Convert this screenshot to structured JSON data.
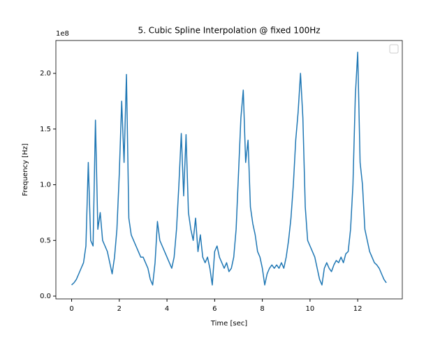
{
  "chart_data": {
    "type": "line",
    "title": "5. Cubic Spline Interpolation @ fixed 100Hz",
    "x_label": "Time [sec]",
    "y_label": "Frequency [Hz]",
    "y_offset_label": "1e8",
    "legend": "upper right",
    "x": [
      0,
      0.1,
      0.2,
      0.3,
      0.4,
      0.5,
      0.6,
      0.7,
      0.8,
      0.9,
      1,
      1.1,
      1.2,
      1.3,
      1.4,
      1.5,
      1.6,
      1.7,
      1.8,
      1.9,
      2,
      2.1,
      2.2,
      2.3,
      2.4,
      2.5,
      2.6,
      2.7,
      2.8,
      2.9,
      3,
      3.1,
      3.2,
      3.3,
      3.4,
      3.5,
      3.6,
      3.7,
      3.8,
      3.9,
      4,
      4.1,
      4.2,
      4.3,
      4.4,
      4.5,
      4.6,
      4.7,
      4.8,
      4.9,
      5,
      5.1,
      5.2,
      5.3,
      5.4,
      5.5,
      5.6,
      5.7,
      5.8,
      5.9,
      6,
      6.1,
      6.2,
      6.3,
      6.4,
      6.5,
      6.6,
      6.7,
      6.8,
      6.9,
      7,
      7.1,
      7.2,
      7.3,
      7.4,
      7.5,
      7.6,
      7.7,
      7.8,
      7.9,
      8,
      8.1,
      8.2,
      8.3,
      8.4,
      8.5,
      8.6,
      8.7,
      8.8,
      8.9,
      9,
      9.1,
      9.2,
      9.3,
      9.4,
      9.5,
      9.6,
      9.7,
      9.8,
      9.9,
      10,
      10.1,
      10.2,
      10.3,
      10.4,
      10.5,
      10.6,
      10.7,
      10.8,
      10.9,
      11,
      11.1,
      11.2,
      11.3,
      11.4,
      11.5,
      11.6,
      11.7,
      11.8,
      11.9,
      12,
      12.1,
      12.2,
      12.3,
      12.4,
      12.5,
      12.6,
      12.7,
      12.8,
      12.9,
      13,
      13.1,
      13.2
    ],
    "series": [
      {
        "color": "#1f77b4",
        "values": [
          10000000,
          12000000,
          15000000,
          20000000,
          25000000,
          30000000,
          45000000,
          120000000,
          50000000,
          45000000,
          158000000,
          60000000,
          75000000,
          50000000,
          45000000,
          40000000,
          30000000,
          20000000,
          35000000,
          60000000,
          110000000,
          175000000,
          120000000,
          199000000,
          70000000,
          55000000,
          50000000,
          45000000,
          40000000,
          35000000,
          35000000,
          30000000,
          25000000,
          15000000,
          10000000,
          30000000,
          67000000,
          50000000,
          45000000,
          40000000,
          35000000,
          30000000,
          25000000,
          35000000,
          60000000,
          100000000,
          146000000,
          90000000,
          145000000,
          75000000,
          60000000,
          50000000,
          70000000,
          40000000,
          55000000,
          35000000,
          30000000,
          35000000,
          25000000,
          10000000,
          40000000,
          45000000,
          35000000,
          30000000,
          25000000,
          30000000,
          22000000,
          25000000,
          35000000,
          60000000,
          110000000,
          160000000,
          185000000,
          120000000,
          140000000,
          80000000,
          65000000,
          55000000,
          40000000,
          35000000,
          25000000,
          10000000,
          20000000,
          25000000,
          28000000,
          25000000,
          28000000,
          25000000,
          30000000,
          25000000,
          35000000,
          50000000,
          70000000,
          100000000,
          140000000,
          165000000,
          200000000,
          160000000,
          80000000,
          50000000,
          45000000,
          40000000,
          35000000,
          25000000,
          15000000,
          10000000,
          25000000,
          30000000,
          25000000,
          22000000,
          28000000,
          32000000,
          30000000,
          35000000,
          30000000,
          38000000,
          40000000,
          60000000,
          100000000,
          180000000,
          219000000,
          120000000,
          100000000,
          60000000,
          50000000,
          40000000,
          35000000,
          30000000,
          28000000,
          25000000,
          20000000,
          15000000,
          12000000
        ]
      }
    ],
    "xlim": [
      -0.66,
      13.87
    ],
    "ylim": [
      -2500000,
      229500000
    ],
    "xticks": [
      0,
      2,
      4,
      6,
      8,
      10,
      12
    ],
    "yticks": [
      {
        "value": 0,
        "label": "0.0"
      },
      {
        "value": 50000000,
        "label": "0.5"
      },
      {
        "value": 100000000,
        "label": "1.0"
      },
      {
        "value": 150000000,
        "label": "1.5"
      },
      {
        "value": 200000000,
        "label": "2.0"
      }
    ]
  }
}
